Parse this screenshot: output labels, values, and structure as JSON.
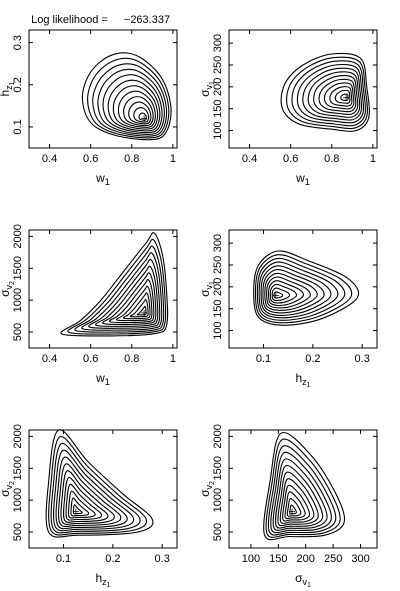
{
  "header": {
    "label": "Log likelihood =",
    "value": "−263.337"
  },
  "colors": {
    "line": "#000000",
    "background": "#ffffff"
  },
  "chart_data": [
    {
      "type": "contour",
      "xlabel": {
        "main": "w",
        "sub": "1"
      },
      "ylabel": {
        "main": "h",
        "sub": "z",
        "subsub": "1"
      },
      "xlim": [
        0.3,
        1.02
      ],
      "ylim": [
        0.05,
        0.33
      ],
      "xticks": [
        0.4,
        0.6,
        0.8,
        1
      ],
      "xticklabels": [
        "0.4",
        "0.6",
        "0.8",
        "1"
      ],
      "yticks": [
        0.1,
        0.2,
        0.3
      ],
      "yticklabels": [
        "0.1",
        "0.2",
        "0.3"
      ],
      "maximum": {
        "x": 0.86,
        "y": 0.12
      },
      "contour_levels": 12,
      "outer_contour": [
        [
          0.9,
          0.07
        ],
        [
          0.97,
          0.09
        ],
        [
          0.99,
          0.15
        ],
        [
          0.94,
          0.22
        ],
        [
          0.82,
          0.27
        ],
        [
          0.7,
          0.27
        ],
        [
          0.6,
          0.23
        ],
        [
          0.56,
          0.17
        ],
        [
          0.6,
          0.11
        ],
        [
          0.72,
          0.08
        ]
      ]
    },
    {
      "type": "contour",
      "xlabel": {
        "main": "w",
        "sub": "1"
      },
      "ylabel": {
        "main": "σ",
        "sub": "v",
        "subsub": "1"
      },
      "xlim": [
        0.3,
        1.02
      ],
      "ylim": [
        60,
        330
      ],
      "xticks": [
        0.4,
        0.6,
        0.8,
        1
      ],
      "xticklabels": [
        "0.4",
        "0.6",
        "0.8",
        "1"
      ],
      "yticks": [
        100,
        150,
        200,
        250,
        300
      ],
      "yticklabels": [
        "100",
        "150",
        "200",
        "250",
        "300"
      ],
      "maximum": {
        "x": 0.87,
        "y": 175
      },
      "contour_levels": 12,
      "outer_contour": [
        [
          0.92,
          100
        ],
        [
          0.98,
          130
        ],
        [
          0.97,
          200
        ],
        [
          0.94,
          265
        ],
        [
          0.8,
          275
        ],
        [
          0.66,
          250
        ],
        [
          0.57,
          205
        ],
        [
          0.56,
          150
        ],
        [
          0.64,
          115
        ],
        [
          0.8,
          103
        ]
      ]
    },
    {
      "type": "contour",
      "xlabel": {
        "main": "w",
        "sub": "1"
      },
      "ylabel": {
        "main": "σ",
        "sub": "v",
        "subsub": "2"
      },
      "xlim": [
        0.3,
        1.02
      ],
      "ylim": [
        250,
        2100
      ],
      "xticks": [
        0.4,
        0.6,
        0.8,
        1
      ],
      "xticklabels": [
        "0.4",
        "0.6",
        "0.8",
        "1"
      ],
      "yticks": [
        500,
        1000,
        1500,
        2000
      ],
      "yticklabels": [
        "500",
        "1000",
        "1500",
        "2000"
      ],
      "maximum": {
        "x": 0.86,
        "y": 800
      },
      "contour_levels": 12,
      "outer_contour": [
        [
          0.46,
          470
        ],
        [
          0.55,
          680
        ],
        [
          0.65,
          1000
        ],
        [
          0.76,
          1450
        ],
        [
          0.87,
          1900
        ],
        [
          0.91,
          2050
        ],
        [
          0.95,
          1700
        ],
        [
          0.97,
          1100
        ],
        [
          0.97,
          620
        ],
        [
          0.92,
          480
        ],
        [
          0.7,
          440
        ]
      ]
    },
    {
      "type": "contour",
      "xlabel": {
        "main": "h",
        "sub": "z",
        "subsub": "1"
      },
      "ylabel": {
        "main": "σ",
        "sub": "v",
        "subsub": "1"
      },
      "xlim": [
        0.03,
        0.33
      ],
      "ylim": [
        60,
        330
      ],
      "xticks": [
        0.1,
        0.2,
        0.3
      ],
      "xticklabels": [
        "0.1",
        "0.2",
        "0.3"
      ],
      "yticks": [
        100,
        150,
        200,
        250,
        300
      ],
      "yticklabels": [
        "100",
        "150",
        "200",
        "250",
        "300"
      ],
      "maximum": {
        "x": 0.125,
        "y": 180
      },
      "contour_levels": 12,
      "outer_contour": [
        [
          0.09,
          130
        ],
        [
          0.08,
          190
        ],
        [
          0.09,
          250
        ],
        [
          0.13,
          282
        ],
        [
          0.19,
          260
        ],
        [
          0.27,
          220
        ],
        [
          0.29,
          175
        ],
        [
          0.22,
          128
        ],
        [
          0.14,
          112
        ]
      ]
    },
    {
      "type": "contour",
      "xlabel": {
        "main": "h",
        "sub": "z",
        "subsub": "1"
      },
      "ylabel": {
        "main": "σ",
        "sub": "v",
        "subsub": "2"
      },
      "xlim": [
        0.03,
        0.33
      ],
      "ylim": [
        250,
        2100
      ],
      "xticks": [
        0.1,
        0.2,
        0.3
      ],
      "xticklabels": [
        "0.1",
        "0.2",
        "0.3"
      ],
      "yticks": [
        500,
        1000,
        1500,
        2000
      ],
      "yticklabels": [
        "500",
        "1000",
        "1500",
        "2000"
      ],
      "maximum": {
        "x": 0.125,
        "y": 820
      },
      "contour_levels": 12,
      "outer_contour": [
        [
          0.07,
          500
        ],
        [
          0.07,
          1300
        ],
        [
          0.09,
          2100
        ],
        [
          0.15,
          1600
        ],
        [
          0.22,
          1100
        ],
        [
          0.28,
          700
        ],
        [
          0.25,
          500
        ],
        [
          0.13,
          450
        ]
      ]
    },
    {
      "type": "contour",
      "xlabel": {
        "main": "σ",
        "sub": "v",
        "subsub": "1"
      },
      "ylabel": {
        "main": "σ",
        "sub": "v",
        "subsub": "2"
      },
      "xlim": [
        60,
        330
      ],
      "ylim": [
        250,
        2100
      ],
      "xticks": [
        100,
        150,
        200,
        250,
        300
      ],
      "xticklabels": [
        "100",
        "150",
        "200",
        "250",
        "300"
      ],
      "yticks": [
        500,
        1000,
        1500,
        2000
      ],
      "yticklabels": [
        "500",
        "1000",
        "1500",
        "2000"
      ],
      "maximum": {
        "x": 175,
        "y": 820
      },
      "contour_levels": 12,
      "outer_contour": [
        [
          125,
          450
        ],
        [
          135,
          1300
        ],
        [
          155,
          2050
        ],
        [
          210,
          1700
        ],
        [
          255,
          1100
        ],
        [
          270,
          650
        ],
        [
          235,
          450
        ],
        [
          170,
          430
        ]
      ]
    }
  ]
}
